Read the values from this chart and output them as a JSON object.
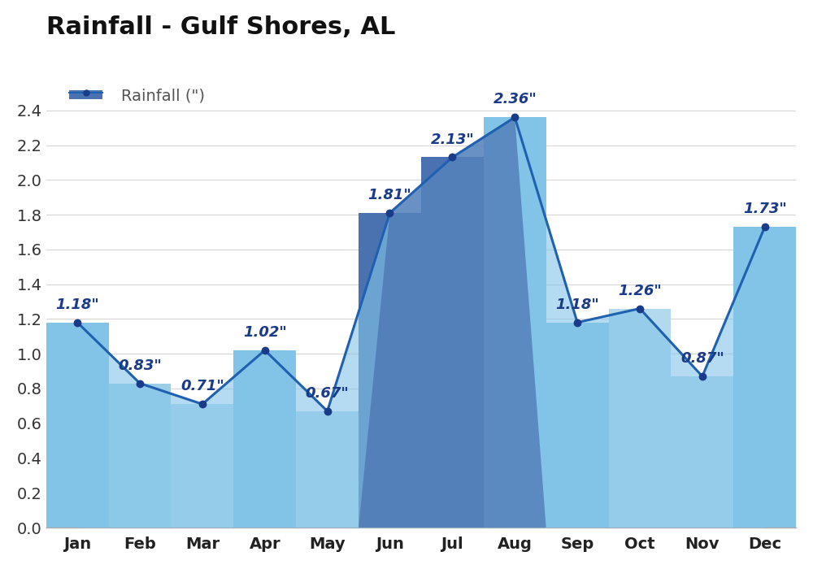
{
  "months": [
    "Jan",
    "Feb",
    "Mar",
    "Apr",
    "May",
    "Jun",
    "Jul",
    "Aug",
    "Sep",
    "Oct",
    "Nov",
    "Dec"
  ],
  "values": [
    1.18,
    0.83,
    0.71,
    1.02,
    0.67,
    1.81,
    2.13,
    2.36,
    1.18,
    1.26,
    0.87,
    1.73
  ],
  "bar_colors": [
    "#82C4E8",
    "#9BCFE8",
    "#B2D9EE",
    "#82C4E8",
    "#B2D9EE",
    "#4A72B0",
    "#4A72B0",
    "#82C4E8",
    "#82C4E8",
    "#B2D9EE",
    "#B2D9EE",
    "#82C4E8"
  ],
  "fill_color_light": "#82C4E8",
  "fill_color_dark": "#4A72B0",
  "line_color": "#2060B0",
  "dot_color": "#1a3a8a",
  "label_color": "#1a3a8a",
  "title": "Rainfall - Gulf Shores, AL",
  "legend_label": "Rainfall (\")",
  "legend_bar_color": "#4A72B0",
  "ylim": [
    0,
    2.6
  ],
  "yticks": [
    0.0,
    0.2,
    0.4,
    0.6,
    0.8,
    1.0,
    1.2,
    1.4,
    1.6,
    1.8,
    2.0,
    2.2,
    2.4
  ],
  "title_fontsize": 22,
  "label_fontsize": 13,
  "tick_fontsize": 14,
  "legend_fontsize": 14,
  "bg_color": "#ffffff",
  "grid_color": "#d5d5d5"
}
